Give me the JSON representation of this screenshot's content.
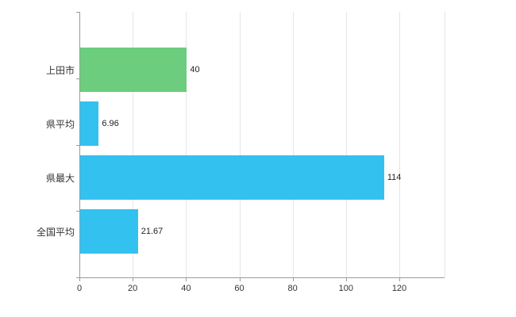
{
  "chart_data": {
    "type": "bar",
    "orientation": "horizontal",
    "title": "",
    "xlabel": "",
    "ylabel": "",
    "categories": [
      "上田市",
      "県平均",
      "県最大",
      "全国平均"
    ],
    "values": [
      40,
      6.96,
      114,
      21.67
    ],
    "value_labels": [
      "40",
      "6.96",
      "114",
      "21.67"
    ],
    "bar_colors": [
      "#6bcd7d",
      "#33c1f0",
      "#33c1f0",
      "#33c1f0"
    ],
    "xlim": [
      0,
      120
    ],
    "x_ticks": [
      0,
      20,
      40,
      60,
      80,
      100,
      120
    ],
    "x_tick_labels": [
      "0",
      "20",
      "40",
      "60",
      "80",
      "100",
      "120"
    ],
    "grid": true,
    "legend": false,
    "background": "#ffffff",
    "axis_color": "#9b9b9b",
    "grid_color": "#e5e5e5"
  }
}
